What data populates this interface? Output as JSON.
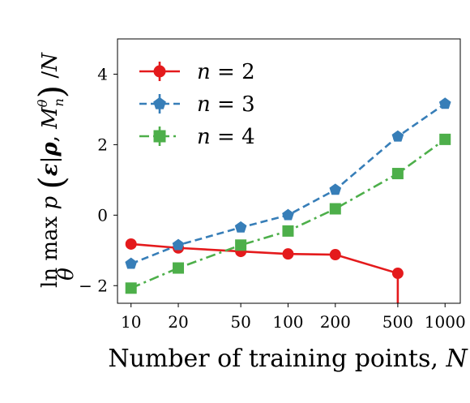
{
  "chart_data": {
    "type": "line",
    "xlabel": "Number of training points,  N",
    "ylabel": "ln max_θ p (ε|ρ, M_n^θ) /N",
    "xscale": "log",
    "xlim": [
      8.2,
      1250
    ],
    "ylim": [
      -2.5,
      5.0
    ],
    "x_ticks": [
      10,
      20,
      50,
      100,
      200,
      500,
      1000
    ],
    "x_tick_labels": [
      "10",
      "20",
      "50",
      "100",
      "200",
      "500",
      "1000"
    ],
    "y_ticks": [
      -2,
      0,
      2,
      4
    ],
    "y_tick_labels": [
      "− 2",
      "0",
      "2",
      "4"
    ],
    "grid": false,
    "legend_position": "top-left",
    "series": [
      {
        "name": "n = 2",
        "color": "#e41a1c",
        "marker": "circle",
        "line_style": "solid",
        "x": [
          10,
          20,
          50,
          100,
          200,
          500,
          500
        ],
        "y": [
          -0.82,
          -0.93,
          -1.03,
          -1.1,
          -1.12,
          -1.65,
          -2.6
        ]
      },
      {
        "name": "n = 3",
        "color": "#377eb8",
        "marker": "pentagon",
        "line_style": "dashed",
        "x": [
          10,
          20,
          50,
          100,
          200,
          500,
          1000
        ],
        "y": [
          -1.38,
          -0.85,
          -0.35,
          0.0,
          0.72,
          2.23,
          3.16
        ]
      },
      {
        "name": "n = 4",
        "color": "#4daf4a",
        "marker": "square",
        "line_style": "dash-dot",
        "x": [
          10,
          20,
          50,
          100,
          200,
          500,
          1000
        ],
        "y": [
          -2.07,
          -1.5,
          -0.85,
          -0.45,
          0.18,
          1.18,
          2.15
        ]
      }
    ]
  }
}
